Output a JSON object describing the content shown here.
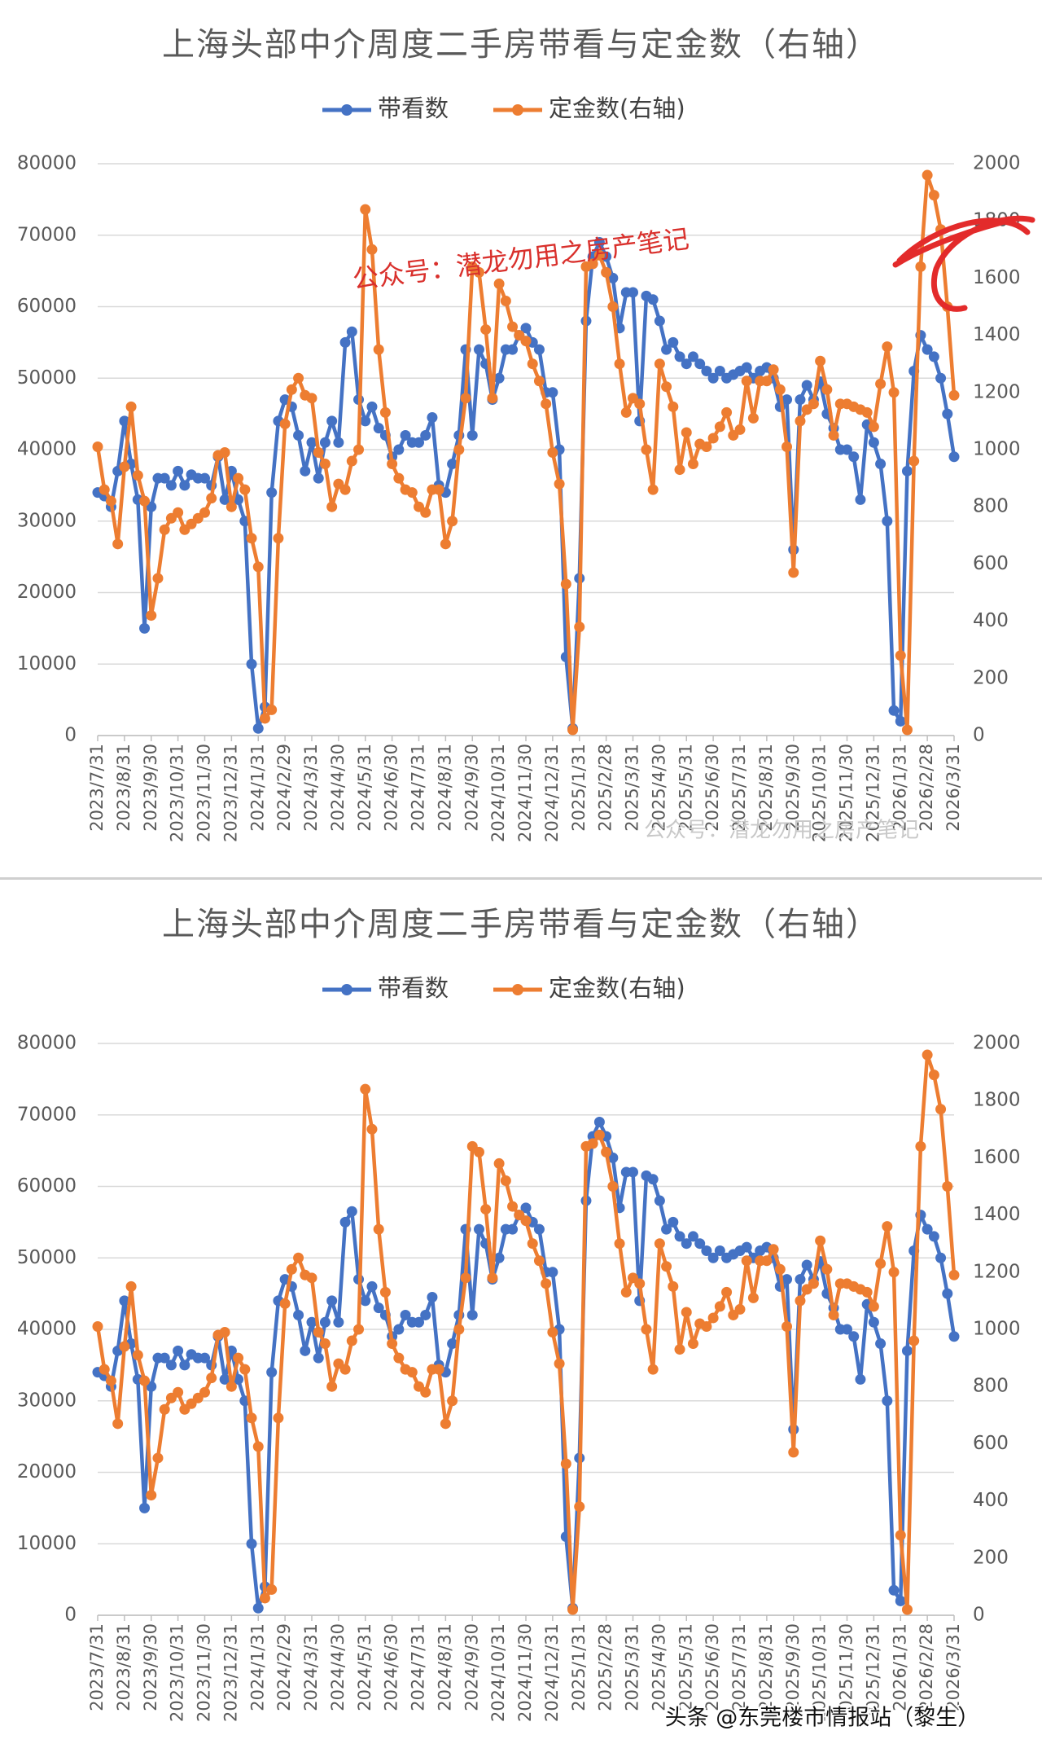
{
  "chart_data": [
    {
      "type": "line",
      "title": "上海头部中介周度二手房带看与定金数（右轴）",
      "annotations": [
        "公众号：潜龙勿用之房产笔记",
        "公众号：潜龙勿用之房产笔记"
      ],
      "categories": [
        "2023/7/31",
        null,
        null,
        null,
        "2023/8/31",
        null,
        null,
        null,
        "2023/9/30",
        null,
        null,
        null,
        "2023/10/31",
        null,
        null,
        null,
        "2023/11/30",
        null,
        null,
        null,
        "2023/12/31",
        null,
        null,
        null,
        "2024/1/31",
        null,
        null,
        null,
        "2024/2/29",
        null,
        null,
        null,
        "2024/3/31",
        null,
        null,
        null,
        "2024/4/30",
        null,
        null,
        null,
        "2024/5/31",
        null,
        null,
        null,
        "2024/6/30",
        null,
        null,
        null,
        "2024/7/31",
        null,
        null,
        null,
        "2024/8/31",
        null,
        null,
        null,
        "2024/9/30",
        null,
        null,
        null,
        "2024/10/31",
        null,
        null,
        null,
        "2024/11/30",
        null,
        null,
        null,
        "2024/12/31",
        null,
        null,
        null,
        "2025/1/31",
        null,
        null,
        null,
        "2025/2/28",
        null,
        null,
        null,
        "2025/3/31",
        null,
        null,
        null,
        "2025/4/30",
        null,
        null,
        null,
        "2025/5/31",
        null,
        null,
        null,
        "2025/6/30",
        null,
        null,
        null,
        "2025/7/31",
        null,
        null,
        null,
        "2025/8/31",
        null,
        null,
        null,
        "2025/9/30",
        null,
        null,
        null,
        "2025/10/31",
        null,
        null,
        null,
        "2025/11/30",
        null,
        null,
        null,
        "2025/12/31",
        null,
        null,
        null,
        "2026/1/31",
        null,
        null,
        null,
        "2026/2/28",
        null,
        null,
        null,
        "2026/3/31"
      ],
      "series": [
        {
          "name": "带看数",
          "color": "#4472c4",
          "axis": "y",
          "values": [
            34000,
            33500,
            32000,
            37000,
            44000,
            38000,
            33000,
            15000,
            32000,
            36000,
            36000,
            35000,
            37000,
            35000,
            36500,
            36000,
            36000,
            35000,
            39000,
            33000,
            37000,
            33000,
            30000,
            10000,
            1000,
            4000,
            34000,
            44000,
            47000,
            46000,
            42000,
            37000,
            41000,
            36000,
            41000,
            44000,
            41000,
            55000,
            56500,
            47000,
            44000,
            46000,
            43000,
            42000,
            39000,
            40000,
            42000,
            41000,
            41000,
            42000,
            44500,
            35000,
            34000,
            38000,
            42000,
            54000,
            42000,
            54000,
            52000,
            47000,
            50000,
            54000,
            54000,
            56000,
            57000,
            55000,
            54000,
            48000,
            48000,
            40000,
            11000,
            1000,
            22000,
            58000,
            67000,
            69000,
            67000,
            64000,
            57000,
            62000,
            62000,
            44000,
            61500,
            61000,
            58000,
            54000,
            55000,
            53000,
            52000,
            53000,
            52000,
            51000,
            50000,
            51000,
            50000,
            50500,
            51000,
            51500,
            50000,
            51000,
            51500,
            50000,
            46000,
            47000,
            26000,
            47000,
            49000,
            47000,
            49500,
            45000,
            43000,
            40000,
            40000,
            39000,
            33000,
            43500,
            41000,
            38000,
            30000,
            3500,
            2000,
            37000,
            51000,
            56000,
            54000,
            53000,
            50000,
            45000,
            39000
          ]
        },
        {
          "name": "定金数(右轴)",
          "color": "#ed7d31",
          "axis": "y2",
          "values": [
            1010,
            860,
            820,
            670,
            940,
            1150,
            910,
            820,
            420,
            550,
            720,
            760,
            780,
            720,
            740,
            760,
            780,
            830,
            980,
            990,
            800,
            900,
            860,
            690,
            590,
            60,
            90,
            690,
            1090,
            1210,
            1250,
            1190,
            1180,
            990,
            950,
            800,
            880,
            860,
            960,
            1000,
            1840,
            1700,
            1350,
            1130,
            950,
            900,
            860,
            850,
            800,
            780,
            860,
            860,
            670,
            750,
            1000,
            1180,
            1640,
            1620,
            1420,
            1180,
            1580,
            1520,
            1430,
            1400,
            1380,
            1300,
            1240,
            1160,
            990,
            880,
            530,
            20,
            380,
            1640,
            1650,
            1680,
            1620,
            1500,
            1300,
            1130,
            1180,
            1160,
            1000,
            860,
            1300,
            1220,
            1150,
            930,
            1060,
            950,
            1020,
            1010,
            1040,
            1080,
            1130,
            1050,
            1070,
            1240,
            1110,
            1240,
            1240,
            1280,
            1210,
            1010,
            570,
            1100,
            1140,
            1160,
            1310,
            1210,
            1050,
            1160,
            1160,
            1150,
            1140,
            1130,
            1080,
            1230,
            1360,
            1200,
            280,
            20,
            960,
            1640,
            1960,
            1890,
            1770,
            1500,
            1190
          ]
        }
      ],
      "ylim": [
        0,
        80000
      ],
      "yticks": [
        0,
        10000,
        20000,
        30000,
        40000,
        50000,
        60000,
        70000,
        80000
      ],
      "y2lim": [
        0,
        2000
      ],
      "y2ticks": [
        0,
        200,
        400,
        600,
        800,
        1000,
        1200,
        1400,
        1600,
        1800,
        2000
      ],
      "grid": true,
      "legend": "top"
    },
    {
      "type": "line",
      "title": "上海头部中介周度二手房带看与定金数（右轴）",
      "annotations": [
        "头条 @东莞楼市情报站（黎生）"
      ],
      "categories": [
        "2023/7/31",
        null,
        null,
        null,
        "2023/8/31",
        null,
        null,
        null,
        "2023/9/30",
        null,
        null,
        null,
        "2023/10/31",
        null,
        null,
        null,
        "2023/11/30",
        null,
        null,
        null,
        "2023/12/31",
        null,
        null,
        null,
        "2024/1/31",
        null,
        null,
        null,
        "2024/2/29",
        null,
        null,
        null,
        "2024/3/31",
        null,
        null,
        null,
        "2024/4/30",
        null,
        null,
        null,
        "2024/5/31",
        null,
        null,
        null,
        "2024/6/30",
        null,
        null,
        null,
        "2024/7/31",
        null,
        null,
        null,
        "2024/8/31",
        null,
        null,
        null,
        "2024/9/30",
        null,
        null,
        null,
        "2024/10/31",
        null,
        null,
        null,
        "2024/11/30",
        null,
        null,
        null,
        "2024/12/31",
        null,
        null,
        null,
        "2025/1/31",
        null,
        null,
        null,
        "2025/2/28",
        null,
        null,
        null,
        "2025/3/31",
        null,
        null,
        null,
        "2025/4/30",
        null,
        null,
        null,
        "2025/5/31",
        null,
        null,
        null,
        "2025/6/30",
        null,
        null,
        null,
        "2025/7/31",
        null,
        null,
        null,
        "2025/8/31",
        null,
        null,
        null,
        "2025/9/30",
        null,
        null,
        null,
        "2025/10/31",
        null,
        null,
        null,
        "2025/11/30",
        null,
        null,
        null,
        "2025/12/31",
        null,
        null,
        null,
        "2026/1/31",
        null,
        null,
        null,
        "2026/2/28",
        null,
        null,
        null,
        "2026/3/31"
      ],
      "series": [
        {
          "name": "带看数",
          "color": "#4472c4",
          "axis": "y",
          "values": [
            34000,
            33500,
            32000,
            37000,
            44000,
            38000,
            33000,
            15000,
            32000,
            36000,
            36000,
            35000,
            37000,
            35000,
            36500,
            36000,
            36000,
            35000,
            39000,
            33000,
            37000,
            33000,
            30000,
            10000,
            1000,
            4000,
            34000,
            44000,
            47000,
            46000,
            42000,
            37000,
            41000,
            36000,
            41000,
            44000,
            41000,
            55000,
            56500,
            47000,
            44000,
            46000,
            43000,
            42000,
            39000,
            40000,
            42000,
            41000,
            41000,
            42000,
            44500,
            35000,
            34000,
            38000,
            42000,
            54000,
            42000,
            54000,
            52000,
            47000,
            50000,
            54000,
            54000,
            56000,
            57000,
            55000,
            54000,
            48000,
            48000,
            40000,
            11000,
            1000,
            22000,
            58000,
            67000,
            69000,
            67000,
            64000,
            57000,
            62000,
            62000,
            44000,
            61500,
            61000,
            58000,
            54000,
            55000,
            53000,
            52000,
            53000,
            52000,
            51000,
            50000,
            51000,
            50000,
            50500,
            51000,
            51500,
            50000,
            51000,
            51500,
            50000,
            46000,
            47000,
            26000,
            47000,
            49000,
            47000,
            49500,
            45000,
            43000,
            40000,
            40000,
            39000,
            33000,
            43500,
            41000,
            38000,
            30000,
            3500,
            2000,
            37000,
            51000,
            56000,
            54000,
            53000,
            50000,
            45000,
            39000
          ]
        },
        {
          "name": "定金数(右轴)",
          "color": "#ed7d31",
          "axis": "y2",
          "values": [
            1010,
            860,
            820,
            670,
            940,
            1150,
            910,
            820,
            420,
            550,
            720,
            760,
            780,
            720,
            740,
            760,
            780,
            830,
            980,
            990,
            800,
            900,
            860,
            690,
            590,
            60,
            90,
            690,
            1090,
            1210,
            1250,
            1190,
            1180,
            990,
            950,
            800,
            880,
            860,
            960,
            1000,
            1840,
            1700,
            1350,
            1130,
            950,
            900,
            860,
            850,
            800,
            780,
            860,
            860,
            670,
            750,
            1000,
            1180,
            1640,
            1620,
            1420,
            1180,
            1580,
            1520,
            1430,
            1400,
            1380,
            1300,
            1240,
            1160,
            990,
            880,
            530,
            20,
            380,
            1640,
            1650,
            1680,
            1620,
            1500,
            1300,
            1130,
            1180,
            1160,
            1000,
            860,
            1300,
            1220,
            1150,
            930,
            1060,
            950,
            1020,
            1010,
            1040,
            1080,
            1130,
            1050,
            1070,
            1240,
            1110,
            1240,
            1240,
            1280,
            1210,
            1010,
            570,
            1100,
            1140,
            1160,
            1310,
            1210,
            1050,
            1160,
            1160,
            1150,
            1140,
            1130,
            1080,
            1230,
            1360,
            1200,
            280,
            20,
            960,
            1640,
            1960,
            1890,
            1770,
            1500,
            1190
          ]
        }
      ],
      "ylim": [
        0,
        80000
      ],
      "yticks": [
        0,
        10000,
        20000,
        30000,
        40000,
        50000,
        60000,
        70000,
        80000
      ],
      "y2lim": [
        0,
        2000
      ],
      "y2ticks": [
        0,
        200,
        400,
        600,
        800,
        1000,
        1200,
        1400,
        1600,
        1800,
        2000
      ],
      "grid": true,
      "legend": "top"
    }
  ]
}
